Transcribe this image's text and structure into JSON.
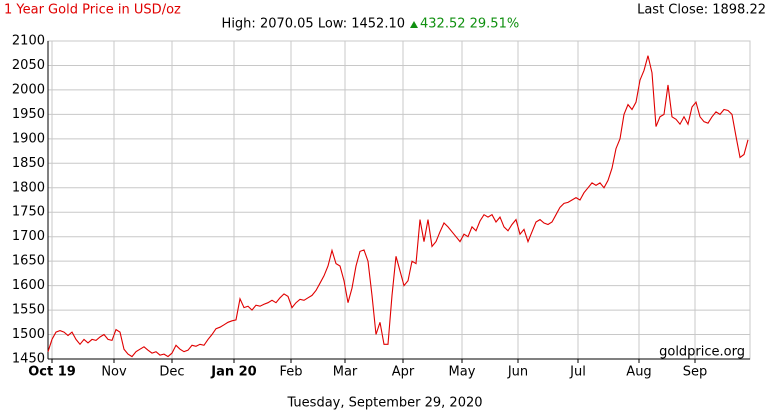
{
  "chart_data": {
    "type": "line",
    "title": "1 Year Gold Price in USD/oz",
    "last_close": "Last Close: 1898.22",
    "high_low": "High: 2070.05 Low: 1452.10",
    "change": "432.52 29.51%",
    "watermark": "goldprice.org",
    "footer": "Tuesday, September 29, 2020",
    "grid": true,
    "xlim": [
      0,
      175
    ],
    "xticks": [
      {
        "value": 1,
        "label": "Oct 19",
        "bold": true
      },
      {
        "value": 16.5,
        "label": "Nov"
      },
      {
        "value": 31,
        "label": "Dec"
      },
      {
        "value": 46.5,
        "label": "Jan 20",
        "bold": true
      },
      {
        "value": 60.75,
        "label": "Feb"
      },
      {
        "value": 74.25,
        "label": "Mar"
      },
      {
        "value": 88.75,
        "label": "Apr"
      },
      {
        "value": 103.5,
        "label": "May"
      },
      {
        "value": 117.5,
        "label": "Jun"
      },
      {
        "value": 132.5,
        "label": "Jul"
      },
      {
        "value": 147.75,
        "label": "Aug"
      },
      {
        "value": 161.75,
        "label": "Sep"
      }
    ],
    "ylim": [
      1450,
      2100
    ],
    "yticks": [
      1450,
      1500,
      1550,
      1600,
      1650,
      1700,
      1750,
      1800,
      1850,
      1900,
      1950,
      2000,
      2050,
      2100
    ],
    "series": [
      {
        "color": "#e00000",
        "values": [
          1465,
          1490,
          1505,
          1508,
          1505,
          1498,
          1505,
          1490,
          1480,
          1490,
          1483,
          1490,
          1488,
          1495,
          1500,
          1490,
          1488,
          1510,
          1505,
          1470,
          1460,
          1455,
          1465,
          1470,
          1475,
          1468,
          1462,
          1465,
          1458,
          1460,
          1455,
          1462,
          1478,
          1470,
          1465,
          1468,
          1478,
          1476,
          1480,
          1478,
          1490,
          1500,
          1512,
          1515,
          1520,
          1525,
          1528,
          1530,
          1573,
          1555,
          1558,
          1550,
          1560,
          1558,
          1562,
          1565,
          1570,
          1565,
          1575,
          1583,
          1578,
          1555,
          1565,
          1572,
          1570,
          1575,
          1580,
          1590,
          1605,
          1620,
          1640,
          1672,
          1645,
          1640,
          1610,
          1565,
          1595,
          1640,
          1670,
          1673,
          1650,
          1580,
          1500,
          1525,
          1480,
          1480,
          1580,
          1660,
          1630,
          1600,
          1610,
          1650,
          1645,
          1735,
          1690,
          1735,
          1680,
          1690,
          1710,
          1728,
          1720,
          1710,
          1700,
          1690,
          1705,
          1700,
          1720,
          1712,
          1732,
          1745,
          1740,
          1745,
          1730,
          1740,
          1720,
          1712,
          1725,
          1735,
          1705,
          1715,
          1690,
          1710,
          1730,
          1735,
          1728,
          1725,
          1730,
          1745,
          1760,
          1768,
          1770,
          1775,
          1780,
          1775,
          1790,
          1800,
          1810,
          1805,
          1810,
          1800,
          1815,
          1840,
          1880,
          1900,
          1950,
          1970,
          1960,
          1975,
          2020,
          2040,
          2070,
          2035,
          1925,
          1945,
          1950,
          2010,
          1945,
          1940,
          1930,
          1945,
          1930,
          1965,
          1975,
          1945,
          1935,
          1932,
          1945,
          1955,
          1950,
          1960,
          1958,
          1950,
          1905,
          1862,
          1868,
          1898
        ]
      }
    ]
  }
}
